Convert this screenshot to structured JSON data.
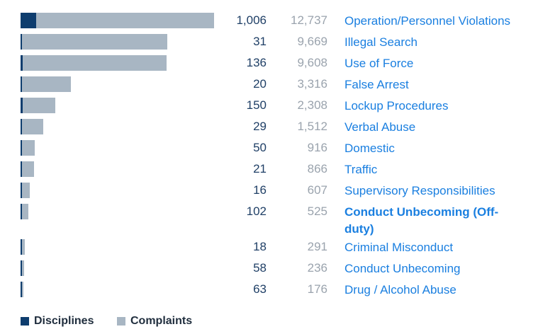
{
  "chart_data": {
    "type": "bar",
    "orientation": "horizontal",
    "categories": [
      "Operation/Personnel Violations",
      "Illegal Search",
      "Use of Force",
      "False Arrest",
      "Lockup Procedures",
      "Verbal Abuse",
      "Domestic",
      "Traffic",
      "Supervisory Responsibilities",
      "Conduct Unbecoming (Off-duty)",
      "Criminal Misconduct",
      "Conduct Unbecoming",
      "Drug / Alcohol Abuse"
    ],
    "highlighted_category": "Conduct Unbecoming (Off-duty)",
    "series": [
      {
        "name": "Disciplines",
        "color": "#0e3d6e",
        "values": [
          1006,
          31,
          136,
          20,
          150,
          29,
          50,
          21,
          16,
          102,
          18,
          58,
          63
        ],
        "labels": [
          "1,006",
          "31",
          "136",
          "20",
          "150",
          "29",
          "50",
          "21",
          "16",
          "102",
          "18",
          "58",
          "63"
        ]
      },
      {
        "name": "Complaints",
        "color": "#a8b6c3",
        "values": [
          12737,
          9669,
          9608,
          3316,
          2308,
          1512,
          916,
          866,
          607,
          525,
          291,
          236,
          176
        ],
        "labels": [
          "12,737",
          "9,669",
          "9,608",
          "3,316",
          "2,308",
          "1,512",
          "916",
          "866",
          "607",
          "525",
          "291",
          "236",
          "176"
        ]
      }
    ],
    "legend": {
      "position": "bottom-left",
      "items": [
        "Disciplines",
        "Complaints"
      ]
    }
  }
}
